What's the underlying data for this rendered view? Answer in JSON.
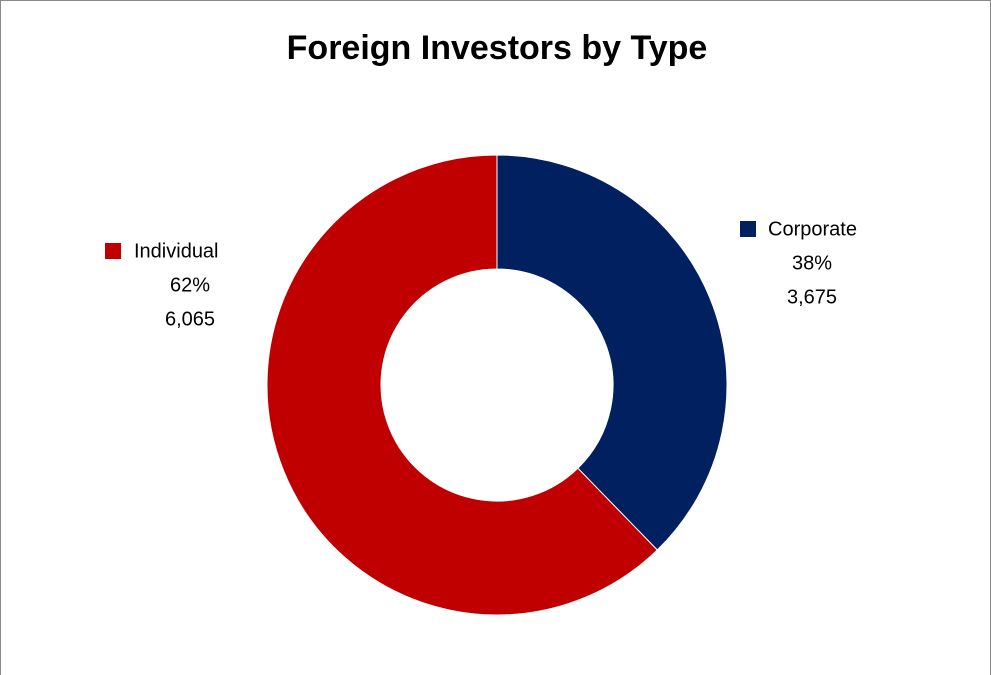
{
  "chart_data": {
    "type": "donut",
    "title": "Foreign Investors by Type",
    "categories": [
      "Corporate",
      "Individual"
    ],
    "values": [
      3675,
      6065
    ],
    "value_labels": [
      "3,675",
      "6,065"
    ],
    "percent_labels": [
      "38%",
      "62%"
    ],
    "colors": [
      "#002060",
      "#c00000"
    ]
  }
}
